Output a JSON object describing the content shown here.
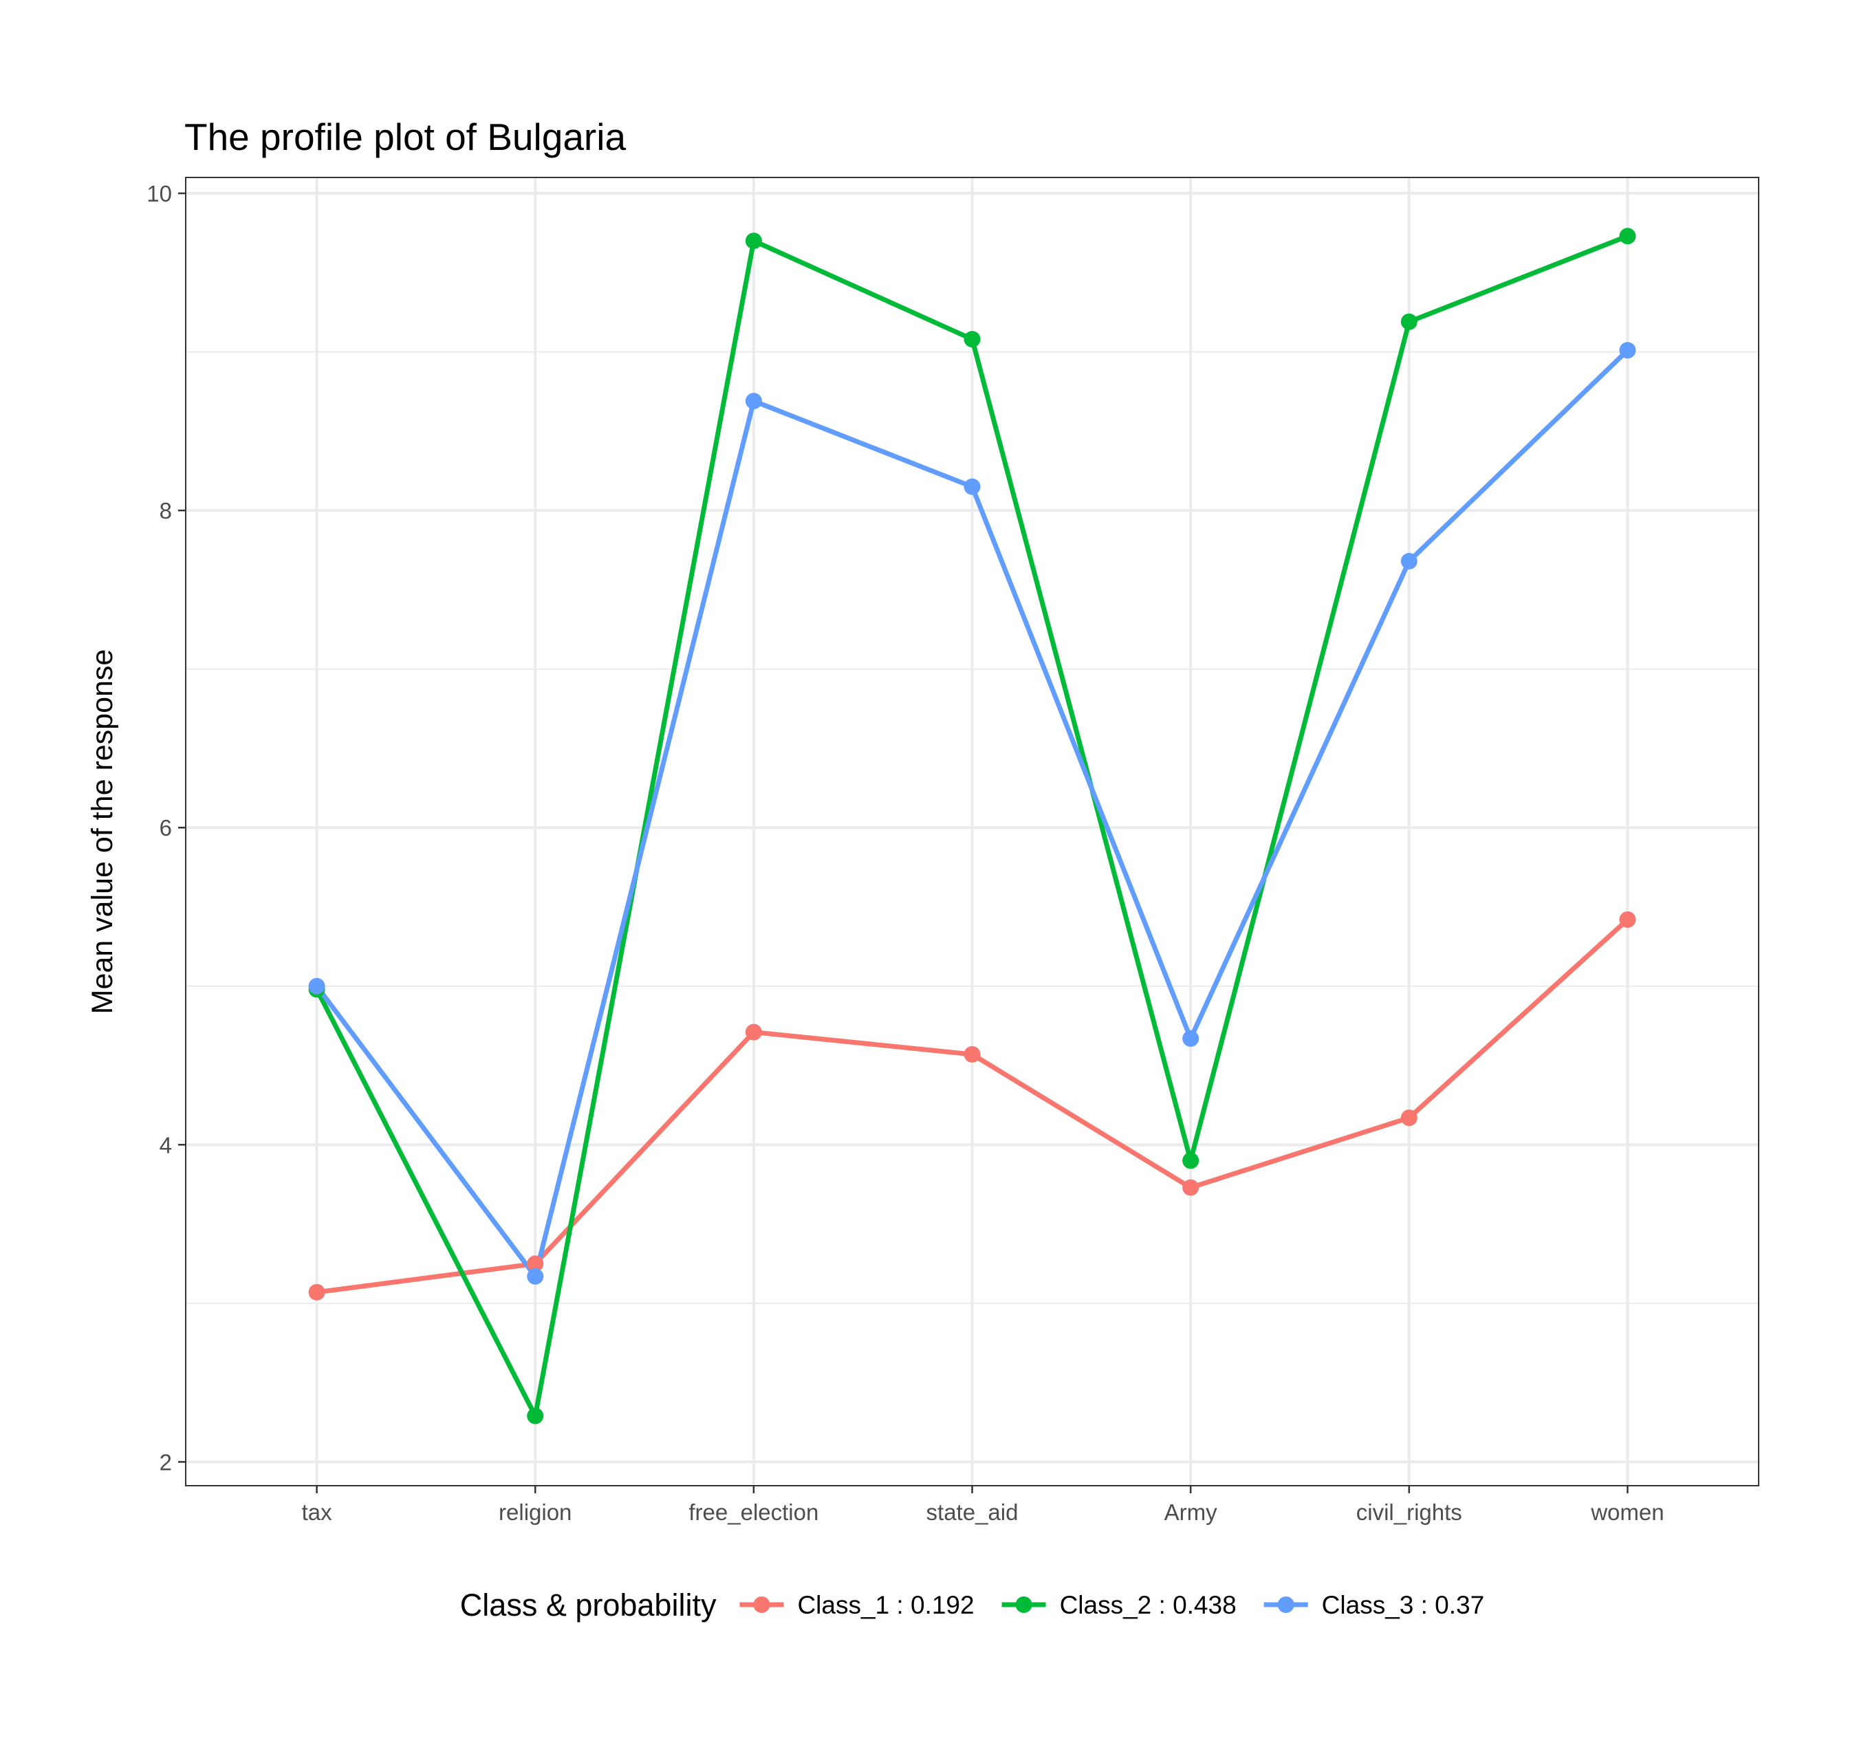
{
  "chart_data": {
    "type": "line",
    "title": "The profile plot of Bulgaria",
    "xlabel": "",
    "ylabel": "Mean value of the response",
    "categories": [
      "tax",
      "religion",
      "free_election",
      "state_aid",
      "Army",
      "civil_rights",
      "women"
    ],
    "ylim": [
      1.85,
      10.1
    ],
    "yticks": [
      2,
      4,
      6,
      8,
      10
    ],
    "grid": true,
    "legend_position": "bottom",
    "legend_title": "Class & probability",
    "series": [
      {
        "name": "Class_1 : 0.192",
        "color": "#F8766D",
        "values": [
          3.07,
          3.25,
          4.71,
          4.57,
          3.73,
          4.17,
          5.42
        ]
      },
      {
        "name": "Class_2 : 0.438",
        "color": "#00BA38",
        "values": [
          4.98,
          2.29,
          9.7,
          9.08,
          3.9,
          9.19,
          9.73
        ]
      },
      {
        "name": "Class_3 : 0.37",
        "color": "#619CFF",
        "values": [
          5.0,
          3.17,
          8.69,
          8.15,
          4.67,
          7.68,
          9.01
        ]
      }
    ]
  }
}
